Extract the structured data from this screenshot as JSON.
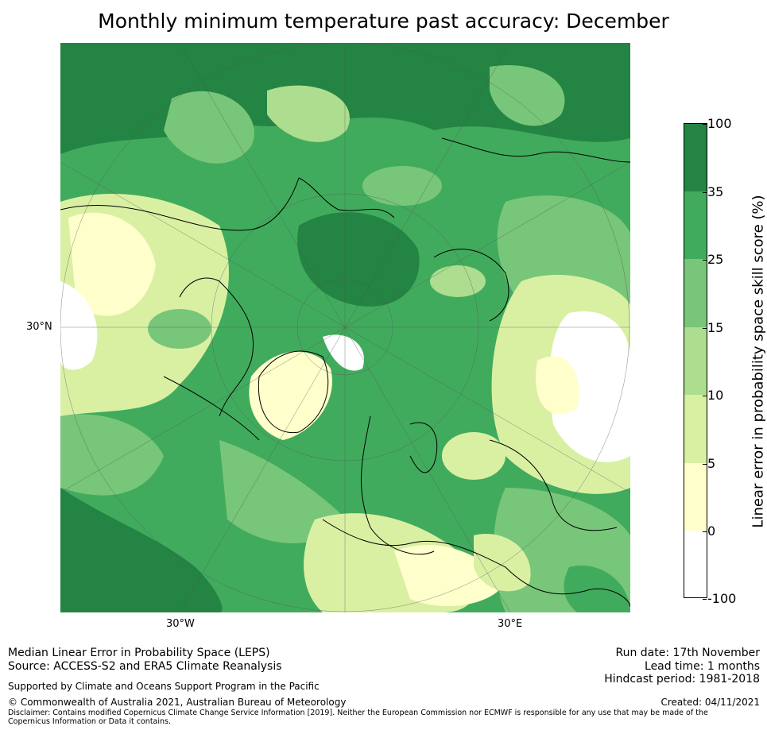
{
  "title": "Monthly minimum temperature past accuracy: December",
  "axes": {
    "left_lat_label": "30°N",
    "bottom_lon_labels": [
      "30°W",
      "30°E"
    ]
  },
  "colorbar": {
    "label": "Linear error in probability space skill score (%)",
    "bins": [
      {
        "lower": "-100",
        "upper": "0",
        "color": "#ffffff"
      },
      {
        "lower": "0",
        "upper": "5",
        "color": "#ffffcc"
      },
      {
        "lower": "5",
        "upper": "10",
        "color": "#d9f0a3"
      },
      {
        "lower": "10",
        "upper": "15",
        "color": "#addd8e"
      },
      {
        "lower": "15",
        "upper": "25",
        "color": "#78c679"
      },
      {
        "lower": "25",
        "upper": "35",
        "color": "#41ab5d"
      },
      {
        "lower": "35",
        "upper": "100",
        "color": "#238443"
      }
    ],
    "tick_labels": [
      "-100",
      "0",
      "5",
      "10",
      "15",
      "25",
      "35",
      "100"
    ]
  },
  "footer": {
    "method": "Median Linear Error in Probability Space (LEPS)",
    "source": "Source: ACCESS-S2 and ERA5 Climate Reanalysis",
    "support": "Supported by Climate and Oceans Support Program in the Pacific",
    "copyright": "© Commonwealth of Australia 2021, Australian Bureau of Meteorology",
    "disclaimer": "Disclaimer: Contains modified Copernicus Climate Change Service Information [2019]. Neither the European Commission nor ECMWF is responsible for any use that may be made of the Copernicus Information or Data it contains.",
    "run_date": "Run date: 17th November",
    "lead_time": "Lead time: 1 months",
    "hindcast": "Hindcast period: 1981-2018",
    "created": "Created: 04/11/2021"
  }
}
